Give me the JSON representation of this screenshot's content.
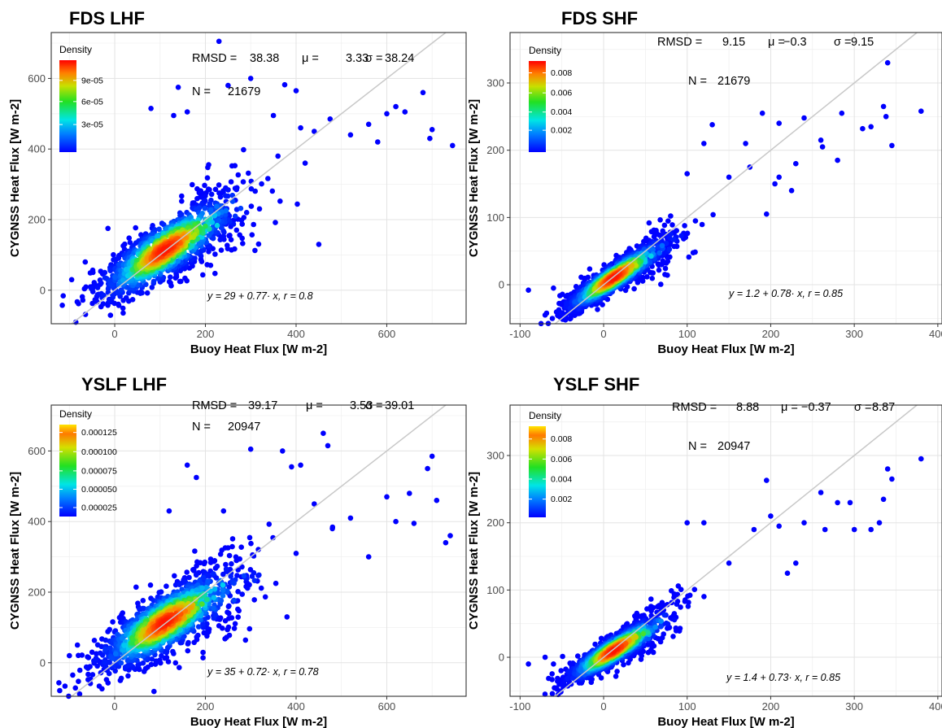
{
  "chart_data": [
    {
      "type": "scatter",
      "title": "FDS LHF",
      "xlabel": "Buoy Heat Flux [W m-2]",
      "ylabel": "CYGNSS Heat Flux [W m-2]",
      "xlim": [
        -140,
        775
      ],
      "ylim": [
        -95,
        730
      ],
      "xticks": [
        0,
        200,
        400,
        600
      ],
      "yticks": [
        0,
        200,
        400,
        600
      ],
      "grid": true,
      "reference_line": "1:1",
      "stats": {
        "rmsd_label": "RMSD =",
        "rmsd": "38.38",
        "mu_label": "μ =",
        "mu": "3.33",
        "sigma_label": "σ =",
        "sigma": "38.24",
        "n_label": "N =",
        "n": "21679"
      },
      "fit_text": "y = 29 + 0.77· x,   r = 0.8",
      "legend": {
        "title": "Density",
        "position": "top-left",
        "ticks": [
          "9e-05",
          "6e-05",
          "3e-05"
        ]
      },
      "cloud": {
        "n": 21679,
        "x_center": 110,
        "x_sd": 70,
        "slope": 0.77,
        "intercept": 29,
        "resid_sd": 38
      },
      "outlier_points": [
        [
          230,
          705
        ],
        [
          300,
          600
        ],
        [
          140,
          575
        ],
        [
          250,
          580
        ],
        [
          375,
          582
        ],
        [
          400,
          565
        ],
        [
          160,
          505
        ],
        [
          130,
          495
        ],
        [
          80,
          515
        ],
        [
          350,
          495
        ],
        [
          475,
          485
        ],
        [
          560,
          470
        ],
        [
          600,
          500
        ],
        [
          620,
          520
        ],
        [
          640,
          505
        ],
        [
          700,
          455
        ],
        [
          745,
          410
        ],
        [
          695,
          430
        ],
        [
          580,
          420
        ],
        [
          680,
          560
        ],
        [
          520,
          440
        ],
        [
          440,
          450
        ],
        [
          410,
          460
        ],
        [
          -15,
          175
        ],
        [
          -65,
          80
        ],
        [
          -95,
          30
        ],
        [
          -50,
          10
        ],
        [
          450,
          130
        ],
        [
          360,
          380
        ],
        [
          420,
          360
        ]
      ]
    },
    {
      "type": "scatter",
      "title": "FDS SHF",
      "xlabel": "Buoy Heat Flux [W m-2]",
      "ylabel": "CYGNSS Heat Flux [W m-2]",
      "xlim": [
        -112,
        405
      ],
      "ylim": [
        -58,
        375
      ],
      "xticks": [
        -100,
        0,
        100,
        200,
        300,
        400
      ],
      "yticks": [
        0,
        100,
        200,
        300
      ],
      "grid": true,
      "reference_line": "1:1",
      "stats": {
        "rmsd_label": "RMSD =",
        "rmsd": "9.15",
        "mu_label": "μ =",
        "mu": "−0.3",
        "sigma_label": "σ =",
        "sigma": "9.15",
        "n_label": "N =",
        "n": "21679"
      },
      "fit_text": "y = 1.2 + 0.78· x,   r = 0.85",
      "legend": {
        "title": "Density",
        "position": "top-left",
        "ticks": [
          "0.008",
          "0.006",
          "0.004",
          "0.002"
        ]
      },
      "cloud": {
        "n": 21679,
        "x_center": 12,
        "x_sd": 28,
        "slope": 0.78,
        "intercept": 1.2,
        "resid_sd": 10
      },
      "outlier_points": [
        [
          340,
          330
        ],
        [
          380,
          258
        ],
        [
          335,
          265
        ],
        [
          338,
          250
        ],
        [
          320,
          235
        ],
        [
          310,
          232
        ],
        [
          345,
          207
        ],
        [
          285,
          255
        ],
        [
          280,
          185
        ],
        [
          260,
          215
        ],
        [
          262,
          205
        ],
        [
          240,
          248
        ],
        [
          210,
          240
        ],
        [
          190,
          255
        ],
        [
          210,
          160
        ],
        [
          205,
          150
        ],
        [
          230,
          180
        ],
        [
          175,
          175
        ],
        [
          130,
          238
        ],
        [
          150,
          160
        ],
        [
          195,
          105
        ],
        [
          -90,
          -8
        ],
        [
          -60,
          -5
        ],
        [
          -70,
          -45
        ],
        [
          170,
          210
        ],
        [
          120,
          210
        ],
        [
          100,
          165
        ],
        [
          225,
          140
        ]
      ]
    },
    {
      "type": "scatter",
      "title": "YSLF LHF",
      "xlabel": "Buoy Heat Flux [W m-2]",
      "ylabel": "CYGNSS Heat Flux [W m-2]",
      "xlim": [
        -140,
        775
      ],
      "ylim": [
        -95,
        730
      ],
      "xticks": [
        0,
        200,
        400,
        600
      ],
      "yticks": [
        0,
        200,
        400,
        600
      ],
      "grid": true,
      "reference_line": "1:1",
      "stats": {
        "rmsd_label": "RMSD =",
        "rmsd": "39.17",
        "mu_label": "μ =",
        "mu": "3.53",
        "sigma_label": "σ =",
        "sigma": "39.01",
        "n_label": "N =",
        "n": "20947"
      },
      "fit_text": "y = 35 + 0.72· x,   r = 0.78",
      "legend": {
        "title": "Density",
        "position": "top-left",
        "ticks": [
          "0.000125",
          "0.000100",
          "0.000075",
          "0.000050",
          "0.000025"
        ]
      },
      "cloud": {
        "n": 20947,
        "x_center": 110,
        "x_sd": 72,
        "slope": 0.72,
        "intercept": 35,
        "resid_sd": 40
      },
      "outlier_points": [
        [
          460,
          650
        ],
        [
          470,
          615
        ],
        [
          370,
          600
        ],
        [
          300,
          605
        ],
        [
          410,
          560
        ],
        [
          390,
          555
        ],
        [
          180,
          525
        ],
        [
          160,
          560
        ],
        [
          700,
          585
        ],
        [
          690,
          550
        ],
        [
          710,
          460
        ],
        [
          650,
          480
        ],
        [
          600,
          470
        ],
        [
          620,
          400
        ],
        [
          740,
          360
        ],
        [
          730,
          340
        ],
        [
          660,
          395
        ],
        [
          520,
          410
        ],
        [
          440,
          450
        ],
        [
          120,
          430
        ],
        [
          240,
          430
        ],
        [
          -100,
          20
        ],
        [
          -50,
          30
        ],
        [
          380,
          130
        ],
        [
          400,
          310
        ],
        [
          560,
          300
        ],
        [
          480,
          380
        ]
      ]
    },
    {
      "type": "scatter",
      "title": "YSLF SHF",
      "xlabel": "Buoy Heat Flux [W m-2]",
      "ylabel": "CYGNSS Heat Flux [W m-2]",
      "xlim": [
        -112,
        405
      ],
      "ylim": [
        -58,
        375
      ],
      "xticks": [
        -100,
        0,
        100,
        200,
        300,
        400
      ],
      "yticks": [
        0,
        100,
        200,
        300
      ],
      "grid": true,
      "reference_line": "1:1",
      "stats": {
        "rmsd_label": "RMSD =",
        "rmsd": "8.88",
        "mu_label": "μ =",
        "mu": "−0.37",
        "sigma_label": "σ =",
        "sigma": "8.87",
        "n_label": "N =",
        "n": "20947"
      },
      "fit_text": "y = 1.4 + 0.73· x,   r = 0.85",
      "legend": {
        "title": "Density",
        "position": "top-left",
        "ticks": [
          "0.008",
          "0.006",
          "0.004",
          "0.002"
        ]
      },
      "cloud": {
        "n": 20947,
        "x_center": 12,
        "x_sd": 27,
        "slope": 0.73,
        "intercept": 1.4,
        "resid_sd": 10
      },
      "outlier_points": [
        [
          380,
          295
        ],
        [
          340,
          280
        ],
        [
          345,
          265
        ],
        [
          335,
          235
        ],
        [
          330,
          200
        ],
        [
          320,
          190
        ],
        [
          300,
          190
        ],
        [
          295,
          230
        ],
        [
          280,
          230
        ],
        [
          260,
          245
        ],
        [
          265,
          190
        ],
        [
          240,
          200
        ],
        [
          195,
          263
        ],
        [
          200,
          210
        ],
        [
          210,
          195
        ],
        [
          230,
          140
        ],
        [
          180,
          190
        ],
        [
          120,
          200
        ],
        [
          100,
          200
        ],
        [
          -90,
          -10
        ],
        [
          -60,
          -10
        ],
        [
          -70,
          0
        ],
        [
          150,
          140
        ],
        [
          220,
          125
        ]
      ]
    }
  ]
}
